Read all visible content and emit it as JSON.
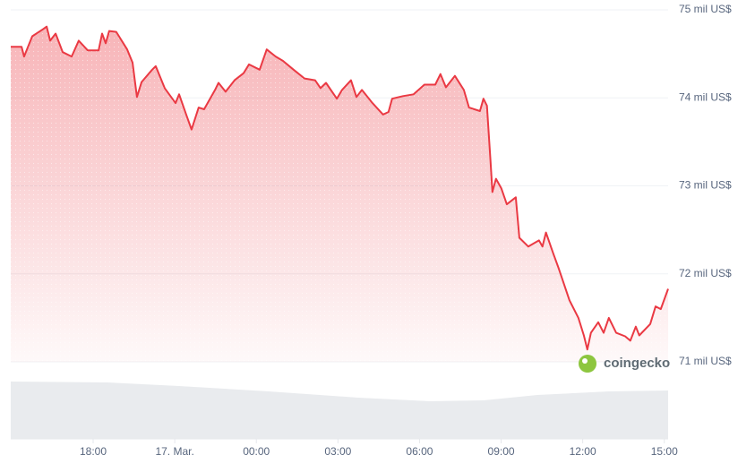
{
  "chart_data": {
    "type": "area",
    "watermark": "coingecko",
    "color": "#ea3943",
    "grid": true,
    "xlim": [
      14.97,
      39.14
    ],
    "xticks": [
      {
        "value": 18,
        "label": "18:00"
      },
      {
        "value": 21,
        "label": "17. Mar."
      },
      {
        "value": 24,
        "label": "00:00"
      },
      {
        "value": 27,
        "label": "03:00"
      },
      {
        "value": 30,
        "label": "06:00"
      },
      {
        "value": 33,
        "label": "09:00"
      },
      {
        "value": 36,
        "label": "12:00"
      },
      {
        "value": 39,
        "label": "15:00"
      }
    ],
    "ylim": [
      71,
      75
    ],
    "yticks": [
      {
        "value": 71,
        "label": "71 mil US$"
      },
      {
        "value": 72,
        "label": "72 mil US$"
      },
      {
        "value": 73,
        "label": "73 mil US$"
      },
      {
        "value": 74,
        "label": "74 mil US$"
      },
      {
        "value": 75,
        "label": "75 mil US$"
      }
    ],
    "x": [
      14.97,
      15.37,
      15.46,
      15.76,
      16.16,
      16.29,
      16.42,
      16.62,
      16.88,
      17.21,
      17.47,
      17.8,
      18.2,
      18.33,
      18.46,
      18.59,
      18.85,
      19.25,
      19.45,
      19.61,
      19.78,
      20.17,
      20.3,
      20.63,
      21.03,
      21.16,
      21.42,
      21.62,
      21.88,
      22.08,
      22.48,
      22.61,
      22.87,
      23.2,
      23.53,
      23.73,
      24.12,
      24.38,
      24.71,
      24.98,
      25.37,
      25.77,
      26.16,
      26.36,
      26.56,
      26.96,
      27.15,
      27.48,
      27.68,
      27.88,
      28.27,
      28.66,
      28.86,
      28.99,
      29.39,
      29.78,
      30.18,
      30.58,
      30.77,
      30.97,
      31.3,
      31.63,
      31.82,
      32.22,
      32.35,
      32.48,
      32.61,
      32.68,
      32.81,
      33.01,
      33.21,
      33.54,
      33.67,
      34.0,
      34.39,
      34.52,
      34.65,
      34.92,
      35.12,
      35.51,
      35.84,
      36.04,
      36.17,
      36.3,
      36.57,
      36.77,
      36.96,
      37.23,
      37.56,
      37.75,
      37.95,
      38.08,
      38.48,
      38.68,
      38.87,
      39.14
    ],
    "values": [
      74.58,
      74.58,
      74.47,
      74.7,
      74.78,
      74.81,
      74.65,
      74.73,
      74.52,
      74.47,
      74.65,
      74.54,
      74.54,
      74.73,
      74.62,
      74.76,
      74.75,
      74.55,
      74.4,
      74.01,
      74.18,
      74.32,
      74.36,
      74.11,
      73.94,
      74.04,
      73.81,
      73.64,
      73.89,
      73.87,
      74.09,
      74.17,
      74.07,
      74.2,
      74.28,
      74.38,
      74.32,
      74.55,
      74.47,
      74.42,
      74.32,
      74.22,
      74.2,
      74.11,
      74.17,
      73.99,
      74.09,
      74.2,
      74.01,
      74.09,
      73.94,
      73.81,
      73.84,
      73.99,
      74.02,
      74.04,
      74.15,
      74.15,
      74.27,
      74.12,
      74.25,
      74.09,
      73.89,
      73.85,
      73.99,
      73.91,
      73.28,
      72.93,
      73.08,
      72.97,
      72.79,
      72.87,
      72.41,
      72.31,
      72.38,
      72.31,
      72.47,
      72.23,
      72.06,
      71.7,
      71.5,
      71.3,
      71.14,
      71.33,
      71.45,
      71.33,
      71.5,
      71.33,
      71.29,
      71.24,
      71.4,
      71.3,
      71.43,
      71.63,
      71.6,
      71.83
    ]
  }
}
